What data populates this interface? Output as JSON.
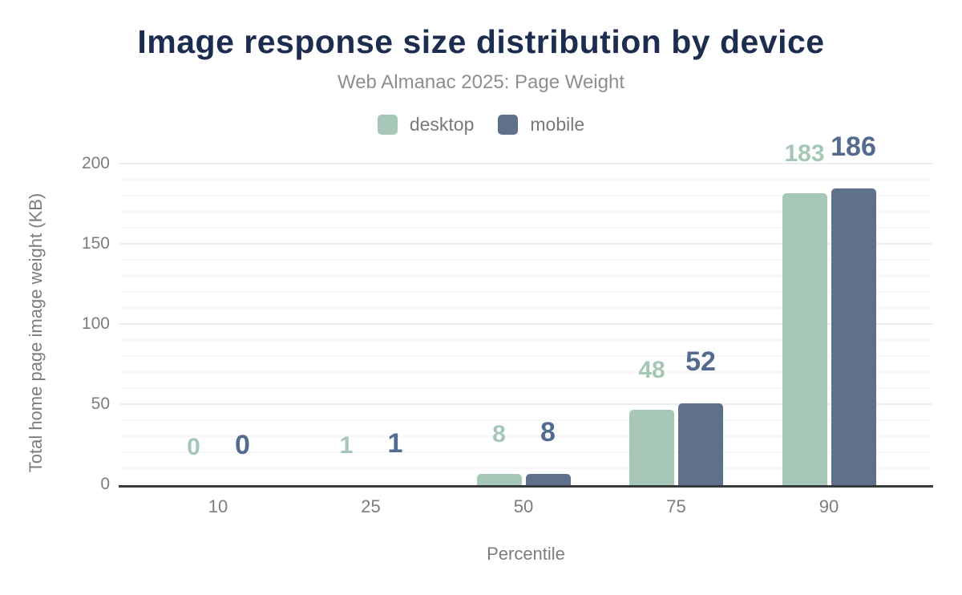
{
  "colors": {
    "background": "#ffffff",
    "title_text": "#1d2d50",
    "subtitle_text": "#8e8e8e",
    "legend_text": "#77797c",
    "axis_text": "#7d7d7d",
    "axis_line": "#37393b",
    "grid_major": "#ededed",
    "grid_minor": "#f8f8f8",
    "desktop": "#a7c8b9",
    "mobile": "#5f708c"
  },
  "chart_data": {
    "type": "bar",
    "title": "Image response size distribution by device",
    "subtitle": "Web Almanac 2025: Page Weight",
    "xlabel": "Percentile",
    "ylabel": "Total home page image weight (KB)",
    "categories": [
      "10",
      "25",
      "50",
      "75",
      "90"
    ],
    "series": [
      {
        "name": "desktop",
        "color": "#a7c8b9",
        "label_color": "#a5c8b6",
        "values": [
          0,
          1,
          8,
          48,
          183
        ]
      },
      {
        "name": "mobile",
        "color": "#5f708c",
        "label_color": "#546a8e",
        "values": [
          0,
          1,
          8,
          52,
          186
        ]
      }
    ],
    "ylim": [
      0,
      200
    ],
    "yticks": [
      0,
      50,
      100,
      150,
      200
    ],
    "minor_grid_step": 10,
    "grid": "horizontal",
    "legend_position": "top",
    "data_labels": true
  }
}
